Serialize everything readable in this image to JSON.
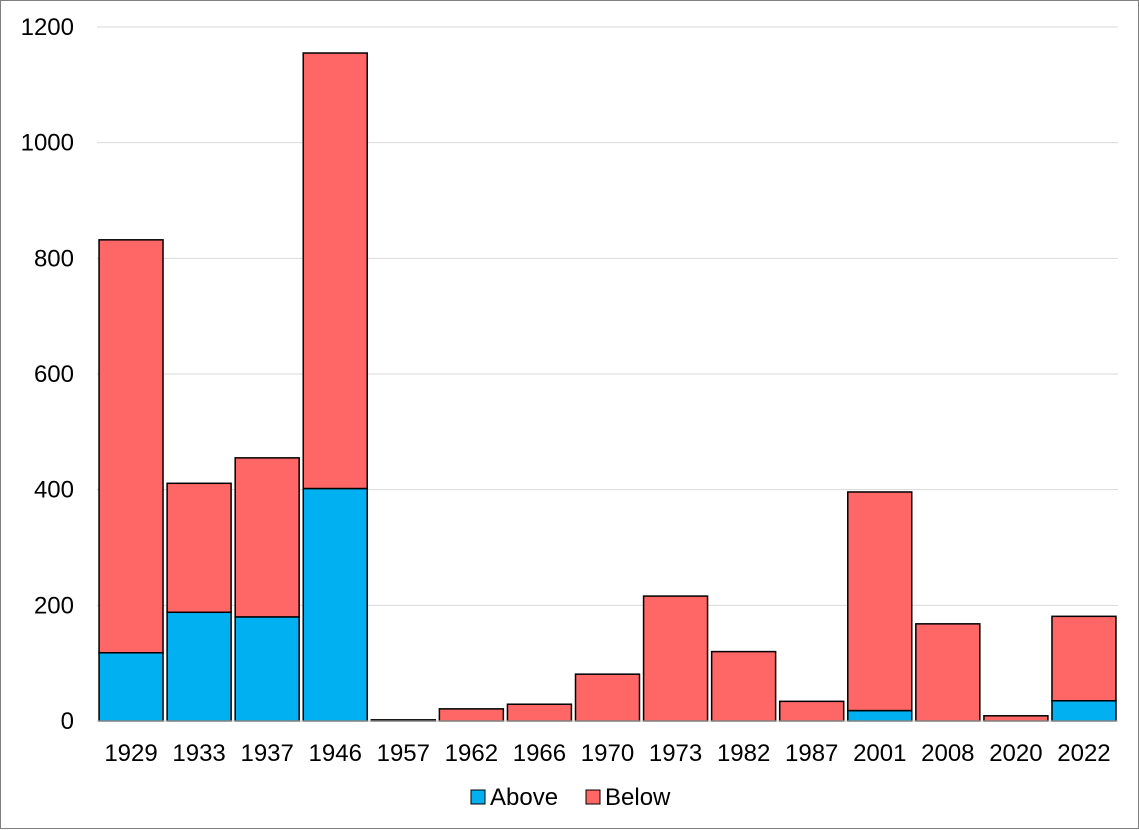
{
  "chart_data": {
    "type": "bar",
    "stacked": true,
    "title": "",
    "xlabel": "",
    "ylabel": "",
    "categories": [
      "1929",
      "1933",
      "1937",
      "1946",
      "1957",
      "1962",
      "1966",
      "1970",
      "1973",
      "1982",
      "1987",
      "2001",
      "2008",
      "2020",
      "2022"
    ],
    "series": [
      {
        "name": "Above",
        "color": "#00b0f0",
        "values": [
          118,
          188,
          180,
          402,
          0,
          0,
          0,
          0,
          0,
          0,
          0,
          18,
          0,
          0,
          35
        ]
      },
      {
        "name": "Below",
        "color": "#ff6666",
        "values": [
          714,
          223,
          275,
          753,
          2,
          21,
          29,
          81,
          216,
          120,
          34,
          378,
          168,
          9,
          146
        ]
      }
    ],
    "ylim": [
      0,
      1200
    ],
    "yticks": [
      0,
      200,
      400,
      600,
      800,
      1000,
      1200
    ],
    "grid": true,
    "legend_position": "bottom"
  }
}
